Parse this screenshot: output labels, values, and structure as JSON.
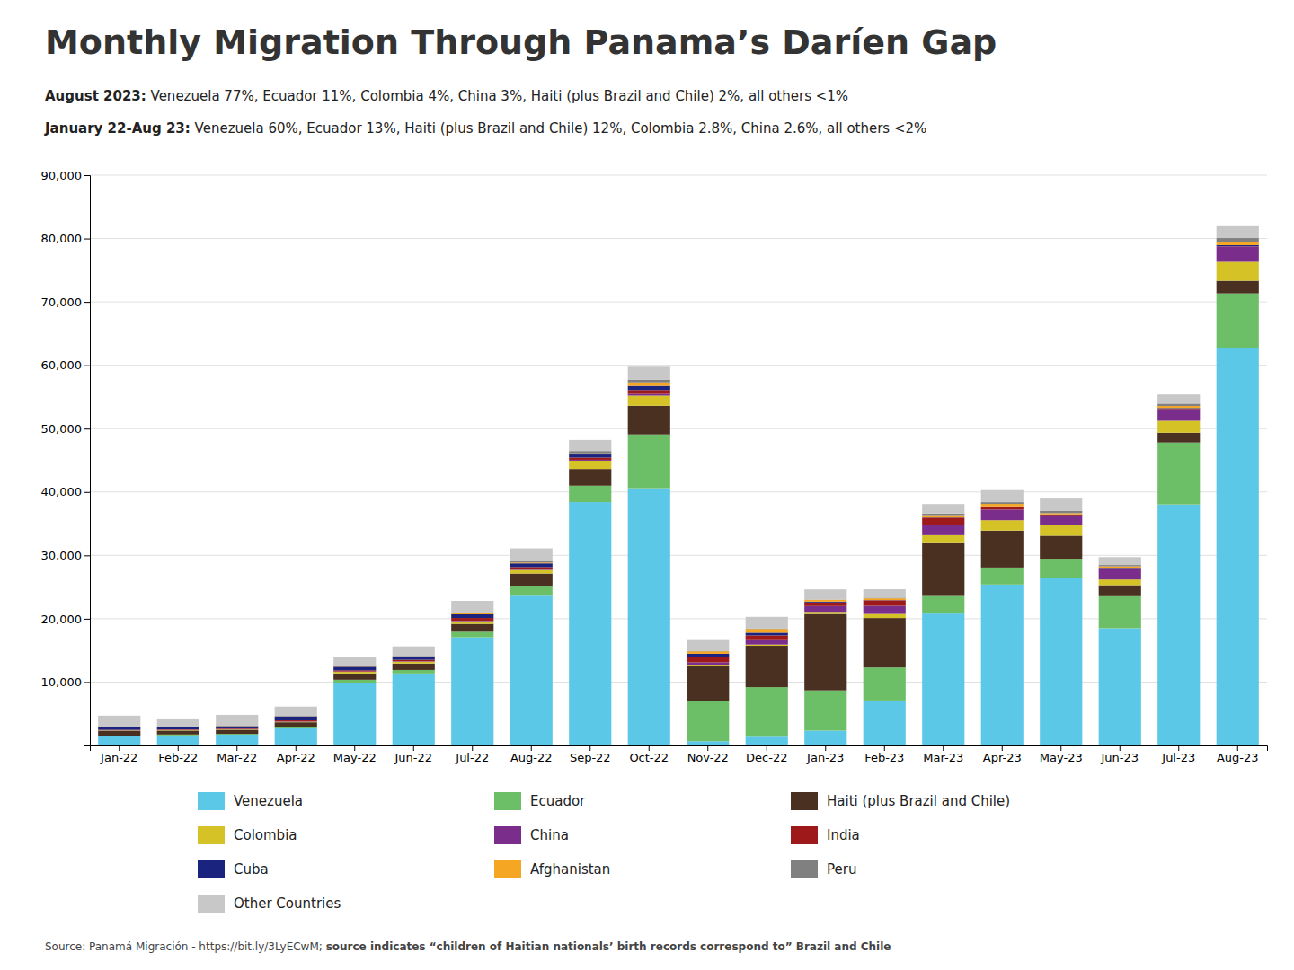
{
  "chart_data": {
    "type": "bar",
    "stacked": true,
    "title": "Monthly Migration Through Panama’s Daríen Gap",
    "subtitle": [
      [
        "August 2023:",
        " Venezuela 77%, Ecuador 11%, Colombia 4%, China 3%, Haiti (plus Brazil and Chile) 2%, all others <1%"
      ],
      [
        "January 22-Aug 23:",
        " Venezuela 60%, Ecuador 13%, Haiti (plus Brazil and Chile) 12%, Colombia 2.8%, China 2.6%, all others <2%"
      ]
    ],
    "annotations": [
      [
        "Source: Panamá Migración - https://bit.ly/3LyECwM; ",
        "source indicates “children of Haitian nationals’ birth records correspond to” Brazil and Chile"
      ]
    ],
    "categories": [
      "Jan-22",
      "Feb-22",
      "Mar-22",
      "Apr-22",
      "May-22",
      "Jun-22",
      "Jul-22",
      "Aug-22",
      "Sep-22",
      "Oct-22",
      "Nov-22",
      "Dec-22",
      "Jan-23",
      "Feb-23",
      "Mar-23",
      "Apr-23",
      "May-23",
      "Jun-23",
      "Jul-23",
      "Aug-23"
    ],
    "series": [
      {
        "name": "Venezuela",
        "color": "#5bc8e8",
        "values": [
          1421,
          1573,
          1704,
          2694,
          9844,
          11359,
          17066,
          23632,
          38399,
          40593,
          668,
          1374,
          2337,
          7097,
          20816,
          25395,
          26409,
          18501,
          38033,
          62700
        ]
      },
      {
        "name": "Ecuador",
        "color": "#6dbf67",
        "values": [
          100,
          156,
          121,
          181,
          527,
          555,
          883,
          1581,
          2594,
          8487,
          6350,
          7821,
          6352,
          5203,
          2772,
          2683,
          3059,
          5052,
          9773,
          8642
        ]
      },
      {
        "name": "Haiti (plus Brazil and Chile)",
        "color": "#4a3020",
        "values": [
          807,
          627,
          658,
          785,
          997,
          1025,
          1245,
          1921,
          2642,
          4525,
          5520,
          6535,
          12063,
          7813,
          8335,
          5832,
          3633,
          1743,
          1548,
          1992
        ]
      },
      {
        "name": "Colombia",
        "color": "#d4c227",
        "values": [
          48,
          72,
          59,
          72,
          248,
          287,
          407,
          569,
          1306,
          1600,
          208,
          188,
          333,
          637,
          1260,
          1634,
          1645,
          894,
          1884,
          2989
        ]
      },
      {
        "name": "China",
        "color": "#7b2d8b",
        "values": [
          32,
          39,
          56,
          59,
          67,
          66,
          85,
          119,
          136,
          274,
          377,
          695,
          913,
          1285,
          1657,
          1683,
          1497,
          1722,
          1789,
          2433
        ]
      },
      {
        "name": "India",
        "color": "#9e1a1a",
        "values": [
          67,
          74,
          88,
          172,
          179,
          228,
          431,
          332,
          350,
          604,
          813,
          756,
          562,
          872,
          1109,
          446,
          161,
          65,
          96,
          27
        ]
      },
      {
        "name": "Cuba",
        "color": "#1a237e",
        "values": [
          367,
          334,
          361,
          634,
          567,
          416,
          574,
          589,
          490,
          663,
          535,
          431,
          142,
          36,
          35,
          59,
          59,
          74,
          123,
          172
        ]
      },
      {
        "name": "Afghanistan",
        "color": "#f5a623",
        "values": [
          1,
          3,
          40,
          31,
          67,
          82,
          162,
          128,
          180,
          551,
          379,
          596,
          291,
          276,
          359,
          386,
          192,
          217,
          321,
          467
        ]
      },
      {
        "name": "Peru",
        "color": "#808080",
        "values": [
          17,
          23,
          18,
          29,
          88,
          109,
          136,
          247,
          365,
          438,
          34,
          39,
          39,
          100,
          261,
          277,
          394,
          209,
          376,
          653
        ]
      },
      {
        "name": "Other Countries",
        "color": "#c8c8c8",
        "values": [
          1842,
          1361,
          1722,
          1477,
          1310,
          1506,
          1833,
          1986,
          1742,
          2038,
          1748,
          1862,
          1602,
          1338,
          1495,
          1902,
          1913,
          1245,
          1444,
          1871
        ]
      }
    ],
    "ylim": [
      0,
      90000
    ],
    "yticks": [
      {
        "value": 10000,
        "label": "10,000"
      },
      {
        "value": 20000,
        "label": "20,000"
      },
      {
        "value": 30000,
        "label": "30,000"
      },
      {
        "value": 40000,
        "label": "40,000"
      },
      {
        "value": 50000,
        "label": "50,000"
      },
      {
        "value": 60000,
        "label": "60,000"
      },
      {
        "value": 70000,
        "label": "70,000"
      },
      {
        "value": 80000,
        "label": "80,000"
      },
      {
        "value": 90000,
        "label": "90,000"
      }
    ],
    "grid": true,
    "legend": "bottom"
  }
}
